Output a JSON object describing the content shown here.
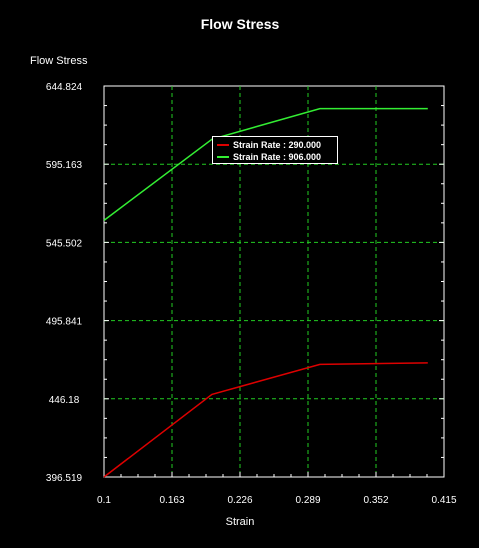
{
  "chart_data": {
    "type": "line",
    "title": "Flow Stress",
    "xlabel": "Strain",
    "ylabel": "Flow Stress",
    "xlim": [
      0.1,
      0.415
    ],
    "ylim": [
      396.519,
      644.824
    ],
    "xticks": [
      "0.1",
      "0.163",
      "0.226",
      "0.289",
      "0.352",
      "0.415"
    ],
    "yticks": [
      "396.519",
      "446.18",
      "495.841",
      "545.502",
      "595.163",
      "644.824"
    ],
    "grid": true,
    "legend_position": "top-center",
    "series": [
      {
        "name": "Strain Rate : 290.000",
        "color": "#dd0000",
        "x": [
          0.1,
          0.2,
          0.3,
          0.4
        ],
        "y": [
          396.5,
          449.0,
          468.0,
          469.0
        ]
      },
      {
        "name": "Strain Rate : 906.000",
        "color": "#33ee33",
        "x": [
          0.1,
          0.2,
          0.3,
          0.4
        ],
        "y": [
          559.5,
          611.0,
          630.5,
          630.5
        ]
      }
    ]
  }
}
